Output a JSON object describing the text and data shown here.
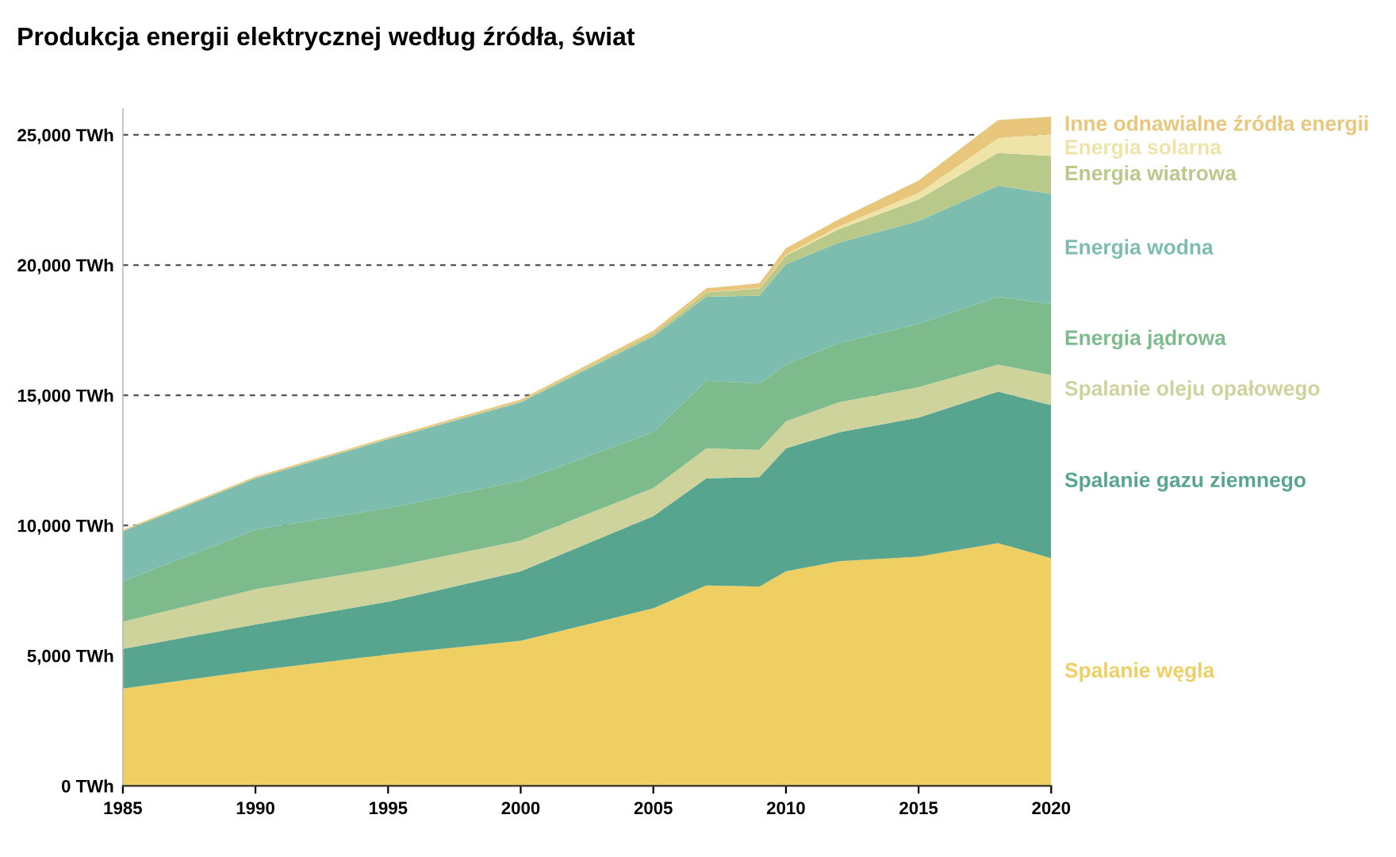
{
  "chart_data": {
    "type": "area",
    "stacked": true,
    "title": "Produkcja energii elektrycznej według źródła, świat",
    "x": [
      1985,
      1990,
      1995,
      2000,
      2005,
      2007,
      2009,
      2010,
      2012,
      2015,
      2018,
      2020
    ],
    "series": [
      {
        "name": "Spalanie węgla",
        "color": "#f0cf62",
        "values": [
          3740,
          4430,
          5050,
          5570,
          6820,
          7700,
          7650,
          8240,
          8630,
          8800,
          9320,
          8740
        ]
      },
      {
        "name": "Spalanie gazu ziemnego",
        "color": "#58a58f",
        "values": [
          1520,
          1770,
          2020,
          2670,
          3540,
          4110,
          4210,
          4720,
          4950,
          5340,
          5820,
          5880
        ]
      },
      {
        "name": "Spalanie oleju opałowego",
        "color": "#cdd39a",
        "values": [
          1040,
          1350,
          1310,
          1180,
          1080,
          1150,
          1040,
          1040,
          1150,
          1170,
          1040,
          1150
        ]
      },
      {
        "name": "Energia jądrowa",
        "color": "#7dbb8c",
        "values": [
          1560,
          2290,
          2290,
          2290,
          2140,
          2600,
          2550,
          2180,
          2280,
          2430,
          2600,
          2740
        ]
      },
      {
        "name": "Energia wodna",
        "color": "#7dbdaf",
        "values": [
          1920,
          1970,
          2640,
          3020,
          3680,
          3220,
          3380,
          3850,
          3850,
          3950,
          4270,
          4220
        ]
      },
      {
        "name": "Energia wiatrowa",
        "color": "#b9c98a",
        "values": [
          0,
          10,
          20,
          30,
          100,
          170,
          270,
          340,
          520,
          830,
          1260,
          1460
        ]
      },
      {
        "name": "Energia solarna",
        "color": "#eee4a8",
        "values": [
          0,
          0,
          0,
          0,
          0,
          10,
          20,
          30,
          100,
          250,
          560,
          850
        ]
      },
      {
        "name": "Inne odnawialne źródła energii",
        "color": "#e8c77d",
        "values": [
          50,
          60,
          60,
          80,
          120,
          150,
          180,
          250,
          280,
          480,
          700,
          660
        ]
      }
    ],
    "xlim": [
      1985,
      2020
    ],
    "xticks": [
      1985,
      1990,
      1995,
      2000,
      2005,
      2010,
      2015,
      2020
    ],
    "ylim": [
      0,
      26000
    ],
    "yticks": [
      {
        "value": 0,
        "label": "0 TWh"
      },
      {
        "value": 5000,
        "label": "5,000 TWh"
      },
      {
        "value": 10000,
        "label": "10,000 TWh"
      },
      {
        "value": 15000,
        "label": "15,000 TWh"
      },
      {
        "value": 20000,
        "label": "20,000 TWh"
      },
      {
        "value": 25000,
        "label": "25,000 TWh"
      }
    ],
    "grid": "y",
    "legend": false
  }
}
